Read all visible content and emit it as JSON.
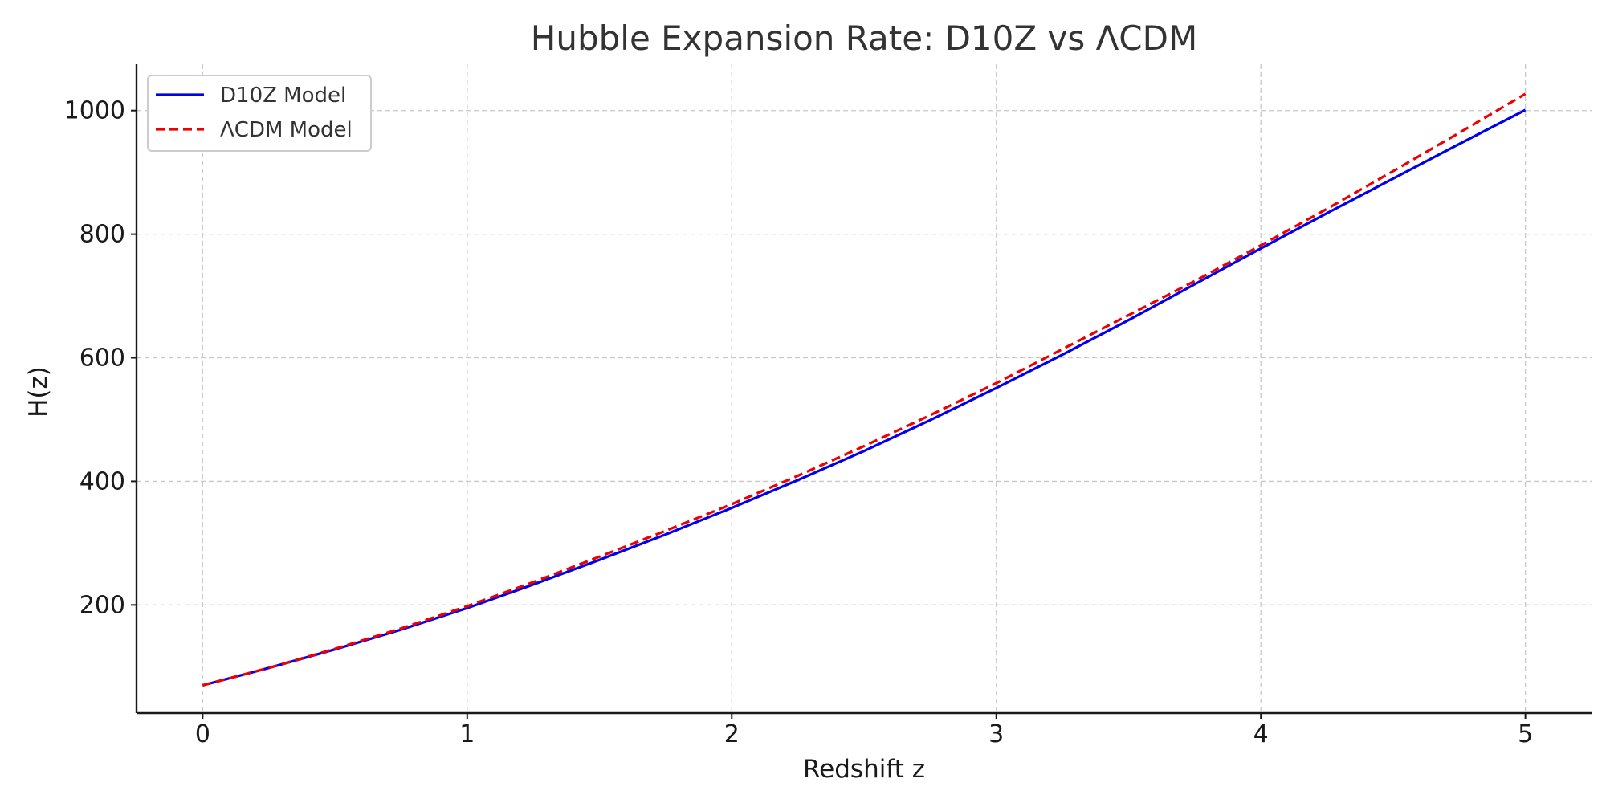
{
  "chart_data": {
    "type": "line",
    "title": "Hubble Expansion Rate: D10Z vs ΛCDM",
    "xlabel": "Redshift z",
    "ylabel": "H(z)",
    "xlim": [
      -0.25,
      5.25
    ],
    "ylim": [
      25,
      1075
    ],
    "xticks": [
      0,
      1,
      2,
      3,
      4,
      5
    ],
    "yticks": [
      200,
      400,
      600,
      800,
      1000
    ],
    "grid": true,
    "legend_position": "top-left",
    "series": [
      {
        "name": "D10Z Model",
        "color": "#0000ee",
        "dash": "solid",
        "x": [
          0,
          0.25,
          0.5,
          0.75,
          1,
          1.25,
          1.5,
          1.75,
          2,
          2.25,
          2.5,
          2.75,
          3,
          3.25,
          3.5,
          3.75,
          4,
          4.25,
          4.5,
          4.75,
          5
        ],
        "y": [
          70,
          98,
          128,
          160,
          195,
          233,
          273,
          314,
          357,
          402,
          449,
          499,
          551,
          605,
          661,
          719,
          777,
          834,
          890,
          946,
          1001
        ]
      },
      {
        "name": "ΛCDM Model",
        "color": "#ee0000",
        "dash": "dashed",
        "x": [
          0,
          0.25,
          0.5,
          0.75,
          1,
          1.25,
          1.5,
          1.75,
          2,
          2.25,
          2.5,
          2.75,
          3,
          3.25,
          3.5,
          3.75,
          4,
          4.25,
          4.5,
          4.75,
          5
        ],
        "y": [
          70,
          98,
          129,
          162,
          198,
          237,
          278,
          320,
          363,
          409,
          457,
          507,
          559,
          614,
          669,
          724,
          782,
          841,
          902,
          964,
          1027
        ]
      }
    ]
  }
}
